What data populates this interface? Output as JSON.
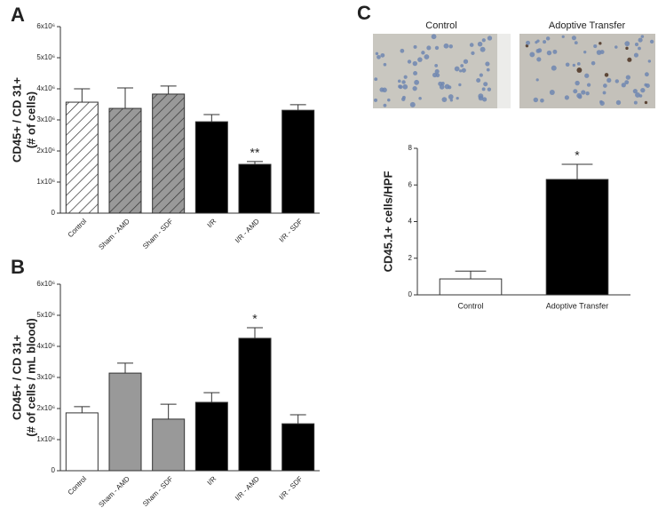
{
  "chart_data": [
    {
      "type": "bar",
      "panel_label": "A",
      "ylabel": [
        "CD45+ / CD 31+",
        "(# of cells)"
      ],
      "categories": [
        "Control",
        "Sham - AMD",
        "Sham - SDF",
        "I/R",
        "I/R - AMD",
        "I/R - SDF"
      ],
      "values": [
        3570000,
        3370000,
        3830000,
        2940000,
        1570000,
        3310000
      ],
      "errors": [
        430000,
        660000,
        260000,
        230000,
        90000,
        180000
      ],
      "colors": [
        "#ffffff",
        "#999999",
        "#999999",
        "#000000",
        "#000000",
        "#000000"
      ],
      "hatched": [
        true,
        true,
        true,
        false,
        false,
        false
      ],
      "value_annotations": [
        null,
        null,
        null,
        null,
        "**",
        null
      ],
      "ylim": [
        0,
        6000000
      ],
      "yticks": [
        0,
        {
          "value": 1000000,
          "label": "1x10⁶"
        },
        {
          "value": 2000000,
          "label": "2x10⁶"
        },
        {
          "value": 3000000,
          "label": "3x10⁶"
        },
        {
          "value": 4000000,
          "label": "4x10⁶"
        },
        {
          "value": 5000000,
          "label": "5x10⁶"
        },
        {
          "value": 6000000,
          "label": "6x10⁶"
        }
      ]
    },
    {
      "type": "bar",
      "panel_label": "B",
      "ylabel": [
        "CD45+ / CD 31+",
        "(# of cells / mL blood)"
      ],
      "categories": [
        "Control",
        "Sham - AMD",
        "Sham - SDF",
        "I/R",
        "I/R - AMD",
        "I/R - SDF"
      ],
      "values": [
        1860000,
        3140000,
        1660000,
        2200000,
        4260000,
        1510000
      ],
      "errors": [
        200000,
        320000,
        480000,
        310000,
        340000,
        290000
      ],
      "colors": [
        "#ffffff",
        "#999999",
        "#999999",
        "#000000",
        "#000000",
        "#000000"
      ],
      "hatched": [
        false,
        false,
        false,
        false,
        false,
        false
      ],
      "value_annotations": [
        null,
        null,
        null,
        null,
        "*",
        null
      ],
      "ylim": [
        0,
        6000000
      ],
      "yticks": [
        0,
        {
          "value": 1000000,
          "label": "1x10⁶"
        },
        {
          "value": 2000000,
          "label": "2x10⁶"
        },
        {
          "value": 3000000,
          "label": "3x10⁶"
        },
        {
          "value": 4000000,
          "label": "4x10⁶"
        },
        {
          "value": 5000000,
          "label": "5x10⁶"
        },
        {
          "value": 6000000,
          "label": "6x10⁶"
        }
      ]
    },
    {
      "type": "bar",
      "panel_label": "C",
      "ylabel": [
        "CD45.1+ cells/HPF"
      ],
      "image_labels": [
        "Control",
        "Adoptive Transfer"
      ],
      "categories": [
        "Control",
        "Adoptive Transfer"
      ],
      "values": [
        0.87,
        6.3
      ],
      "errors": [
        0.43,
        0.83
      ],
      "colors": [
        "#ffffff",
        "#000000"
      ],
      "hatched": [
        false,
        false
      ],
      "value_annotations": [
        null,
        "*"
      ],
      "ylim": [
        0,
        8
      ],
      "yticks": [
        0,
        2,
        4,
        6,
        8
      ]
    }
  ]
}
